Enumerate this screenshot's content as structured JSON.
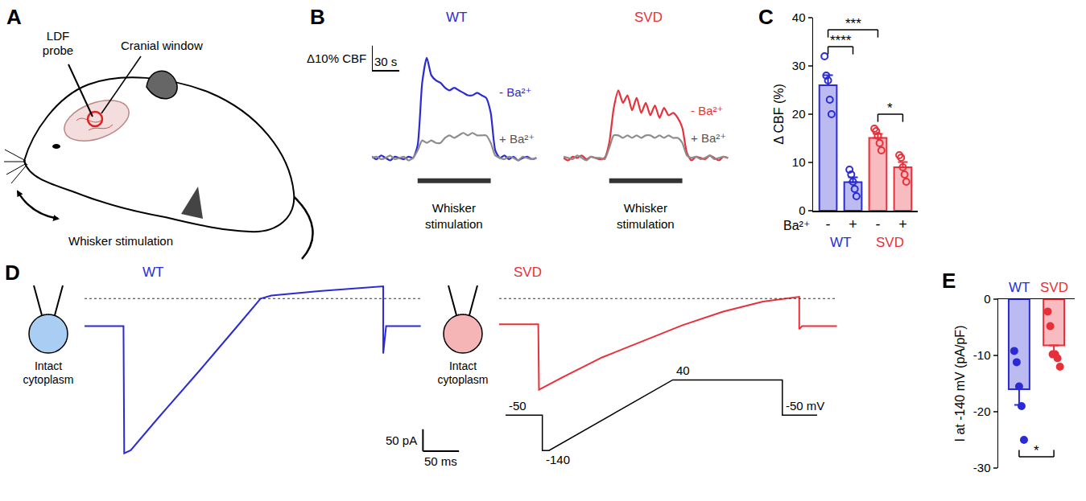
{
  "panel_labels": [
    "A",
    "B",
    "C",
    "D",
    "E"
  ],
  "diagram": {
    "probe_label": "LDF probe",
    "window_label": "Cranial window",
    "stimulation_label": "Whisker stimulation"
  },
  "chart_data": [
    {
      "type": "line",
      "title": "WT",
      "color": "#2b2bd4",
      "tick_labels": false,
      "x": [
        0,
        5,
        10,
        15,
        20,
        25,
        30,
        35,
        40,
        45,
        50,
        55,
        60,
        65,
        70,
        75,
        80,
        85,
        90,
        95,
        100,
        105,
        110,
        115,
        120,
        125,
        130,
        135,
        140,
        145,
        150,
        155,
        160,
        165,
        170,
        175,
        180
      ],
      "xlim": [
        0,
        185
      ],
      "ylim": [
        -14,
        47
      ],
      "series": [
        {
          "name": "- Ba²⁺",
          "color": "#2b2bd4",
          "values": [
            0.5,
            -0.5,
            1,
            0,
            -1,
            0.5,
            0,
            -0.5,
            0.5,
            0,
            5,
            30,
            40,
            33,
            31,
            30,
            28,
            27,
            28,
            27,
            26,
            25,
            25,
            26,
            25,
            24,
            18,
            3,
            0,
            1,
            -0.5,
            0.5,
            -1,
            0,
            0.5,
            -0.5,
            0
          ]
        },
        {
          "name": "+ Ba²⁺",
          "color": "#8c8c8c",
          "values": [
            0,
            0.5,
            -0.5,
            0,
            1,
            -0.5,
            0,
            0.5,
            -1,
            0,
            3,
            7,
            6,
            7,
            6,
            6,
            8,
            9,
            8,
            9,
            10,
            9,
            10,
            9,
            9,
            9,
            6,
            1,
            0,
            -0.5,
            0.5,
            0,
            -1,
            0.5,
            0,
            -0.5,
            0
          ]
        }
      ],
      "stimulation": {
        "label": "Whisker stimulation",
        "start": 50,
        "end": 130
      },
      "scale_bar": {
        "x": 30,
        "x_label": "30 s",
        "y": 10,
        "y_label": "Δ10% CBF"
      }
    },
    {
      "type": "line",
      "title": "SVD",
      "color": "#e8303a",
      "tick_labels": false,
      "x": [
        0,
        5,
        10,
        15,
        20,
        25,
        30,
        35,
        40,
        45,
        50,
        55,
        60,
        65,
        70,
        75,
        80,
        85,
        90,
        95,
        100,
        105,
        110,
        115,
        120,
        125,
        130,
        135,
        140,
        145,
        150,
        155,
        160,
        165,
        170,
        175,
        180
      ],
      "xlim": [
        0,
        185
      ],
      "ylim": [
        -14,
        47
      ],
      "series": [
        {
          "name": "- Ba²⁺",
          "color": "#e8303a",
          "values": [
            0,
            -1,
            0.5,
            0,
            1,
            -0.5,
            0.5,
            0,
            -0.5,
            0,
            6,
            20,
            27,
            22,
            25,
            19,
            24,
            18,
            22,
            17,
            21,
            16,
            20,
            17,
            18,
            16,
            12,
            2,
            -1,
            0.5,
            0,
            -0.5,
            1,
            0,
            -1,
            0.5,
            0
          ]
        },
        {
          "name": "+ Ba²⁺",
          "color": "#8c8c8c",
          "values": [
            0.5,
            0,
            -0.5,
            1,
            0,
            -1,
            0.5,
            0,
            0,
            -0.5,
            4,
            9,
            9,
            8,
            9,
            8,
            9,
            8,
            9,
            9,
            8,
            9,
            8,
            9,
            8,
            8,
            6,
            1,
            0,
            0.5,
            -0.5,
            0,
            1,
            -0.5,
            0,
            0.5,
            0
          ]
        }
      ],
      "stimulation": {
        "label": "Whisker stimulation",
        "start": 50,
        "end": 130
      }
    },
    {
      "type": "bar",
      "categories": [
        "-",
        "+",
        "-",
        "+"
      ],
      "category_label": "Ba²⁺",
      "groups": [
        "WT",
        "WT",
        "SVD",
        "SVD"
      ],
      "colors": [
        "#2b2bd4",
        "#2b2bd4",
        "#e8303a",
        "#e8303a"
      ],
      "values": [
        26,
        5.9,
        15.1,
        9
      ],
      "errors": [
        2.1,
        1.0,
        0.8,
        1.1
      ],
      "points": [
        [
          32,
          28,
          27,
          23,
          20
        ],
        [
          8.5,
          7.5,
          6,
          4.5,
          3
        ],
        [
          17,
          16.5,
          15.5,
          14,
          12.5
        ],
        [
          11.5,
          11,
          9,
          7.5,
          6
        ]
      ],
      "marker": "open",
      "ylabel": "Δ CBF (%)",
      "ylim": [
        0,
        40
      ],
      "yticks": [
        0,
        10,
        20,
        30,
        40
      ],
      "significance": [
        {
          "from": 0,
          "to": 1,
          "y": 34,
          "label": "****"
        },
        {
          "from": 0,
          "to": 2,
          "y": 37.5,
          "label": "***"
        },
        {
          "from": 2,
          "to": 3,
          "y": 20,
          "label": "*"
        }
      ]
    },
    {
      "type": "line",
      "title": "WT",
      "color": "#2b2bd4",
      "tick_labels": false,
      "cell_label": "Intact cytoplasm",
      "x": [
        0,
        54,
        55,
        64,
        103,
        159,
        214,
        244,
        259,
        325,
        414,
        414,
        418,
        466
      ],
      "values": [
        -63,
        -63,
        -355,
        -348,
        -272,
        -166,
        -59,
        0,
        7,
        17,
        28,
        -126,
        -63,
        -63
      ],
      "xlim": [
        0,
        530
      ],
      "ylim": [
        -385,
        30
      ],
      "reference_line": 0,
      "scale_bar": {
        "x": 50,
        "x_label": "50 ms",
        "y": 50,
        "y_label": "50 pA"
      }
    },
    {
      "type": "line",
      "title": "SVD",
      "color": "#e8303a",
      "tick_labels": false,
      "cell_label": "Intact cytoplasm",
      "x": [
        0,
        54,
        55,
        87,
        142,
        198,
        253,
        309,
        364,
        414,
        414,
        418,
        466
      ],
      "values": [
        -59,
        -59,
        -209,
        -181,
        -135,
        -98,
        -61,
        -30,
        -7,
        4,
        -70,
        -63,
        -63
      ],
      "xlim": [
        0,
        472
      ],
      "ylim": [
        -385,
        30
      ],
      "reference_line": 0,
      "protocol": {
        "x": [
          0,
          55,
          55,
          65,
          250,
          414,
          414,
          466
        ],
        "values": [
          -50,
          -50,
          -140,
          -140,
          40,
          40,
          -50,
          -50
        ],
        "xlim": [
          0,
          466
        ],
        "ylim": [
          -150,
          45
        ],
        "labels": [
          {
            "x": 0,
            "y": -50,
            "label": "-50"
          },
          {
            "x": 55,
            "y": -140,
            "label": "-140"
          },
          {
            "x": 250,
            "y": 40,
            "label": "40"
          },
          {
            "x": 414,
            "y": -50,
            "label": "-50 mV"
          }
        ]
      }
    },
    {
      "type": "bar",
      "categories": [
        "WT",
        "SVD"
      ],
      "colors": [
        "#2b2bd4",
        "#e8303a"
      ],
      "values": [
        -16,
        -8.2
      ],
      "errors": [
        2.8,
        1.5
      ],
      "points": [
        [
          -9.2,
          -11.2,
          -15.5,
          -19,
          -25
        ],
        [
          -2.2,
          -4.8,
          -9.8,
          -9.8,
          -10.5,
          -12
        ]
      ],
      "marker": "filled",
      "ylabel": "I at -140 mV (pA/pF)",
      "ylim": [
        -30,
        0
      ],
      "yticks": [
        -30,
        -20,
        -10,
        0
      ],
      "significance": [
        {
          "from": 0,
          "to": 1,
          "y": -28,
          "label": "*"
        }
      ]
    }
  ]
}
